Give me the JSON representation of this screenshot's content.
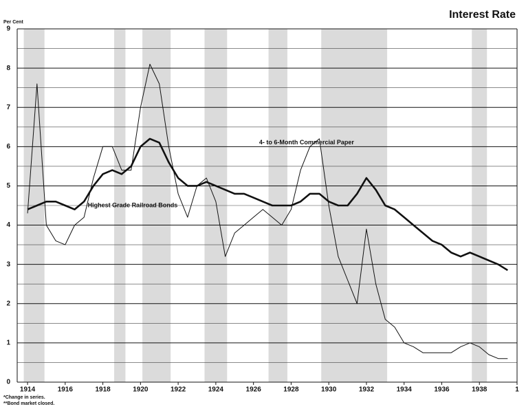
{
  "chart_data": {
    "type": "line",
    "title": "Interest Rate",
    "y_label": "Per Cent",
    "footnotes": [
      "*Change in series.",
      "**Bond market closed."
    ],
    "x": [
      1914,
      1914.5,
      1915,
      1915.5,
      1916,
      1916.5,
      1917,
      1917.5,
      1918,
      1918.5,
      1919,
      1919.5,
      1920,
      1920.5,
      1921,
      1921.5,
      1922,
      1922.5,
      1923,
      1923.5,
      1924,
      1924.5,
      1925,
      1925.5,
      1926,
      1926.5,
      1927,
      1927.5,
      1928,
      1928.5,
      1929,
      1929.5,
      1930,
      1930.5,
      1931,
      1931.5,
      1932,
      1932.5,
      1933,
      1933.5,
      1934,
      1934.5,
      1935,
      1935.5,
      1936,
      1936.5,
      1937,
      1937.5,
      1938,
      1938.5,
      1939,
      1939.5
    ],
    "series": [
      {
        "name": "4- to 6-Month Commercial Paper",
        "color": "#111111",
        "width": 1,
        "values": [
          4.3,
          7.6,
          4.0,
          3.6,
          3.5,
          4.0,
          4.2,
          5.2,
          6.0,
          6.0,
          5.4,
          5.4,
          7.0,
          8.1,
          7.6,
          6.0,
          4.8,
          4.2,
          5.0,
          5.2,
          4.6,
          3.2,
          3.8,
          4.0,
          4.2,
          4.4,
          4.2,
          4.0,
          4.4,
          5.4,
          6.0,
          6.2,
          4.5,
          3.2,
          2.6,
          2.0,
          3.9,
          2.5,
          1.6,
          1.4,
          1.0,
          0.9,
          0.75,
          0.75,
          0.75,
          0.75,
          0.9,
          1.0,
          0.9,
          0.7,
          0.6,
          0.6
        ]
      },
      {
        "name": "Highest Grade Railroad Bonds",
        "color": "#111111",
        "width": 2.6,
        "values": [
          4.4,
          4.5,
          4.6,
          4.6,
          4.5,
          4.4,
          4.6,
          5.0,
          5.3,
          5.4,
          5.3,
          5.5,
          6.0,
          6.2,
          6.1,
          5.6,
          5.2,
          5.0,
          5.0,
          5.1,
          5.0,
          4.9,
          4.8,
          4.8,
          4.7,
          4.6,
          4.5,
          4.5,
          4.5,
          4.6,
          4.8,
          4.8,
          4.6,
          4.5,
          4.5,
          4.8,
          5.2,
          4.9,
          4.5,
          4.4,
          4.2,
          4.0,
          3.8,
          3.6,
          3.5,
          3.3,
          3.2,
          3.3,
          3.2,
          3.1,
          3.0,
          2.85
        ]
      }
    ],
    "shaded_periods": [
      [
        1913.8,
        1914.9
      ],
      [
        1918.6,
        1919.2
      ],
      [
        1920.1,
        1921.6
      ],
      [
        1923.4,
        1924.6
      ],
      [
        1926.8,
        1927.8
      ],
      [
        1929.6,
        1933.1
      ],
      [
        1937.6,
        1938.4
      ]
    ],
    "shade_color": "#cfcfcf",
    "xlim": [
      1913.45,
      1940
    ],
    "xticks": [
      1914,
      1916,
      1918,
      1920,
      1922,
      1924,
      1926,
      1928,
      1930,
      1932,
      1934,
      1936,
      1938,
      {
        "value": 1940,
        "label": "1"
      }
    ],
    "ylim": [
      0,
      9
    ],
    "yticks": [
      0,
      1,
      2,
      3,
      4,
      5,
      6,
      7,
      8,
      9
    ],
    "minor_yticks": [
      0.5,
      1.5,
      2.5,
      3.5,
      4.5,
      5.5,
      6.5,
      7.5,
      8.5
    ],
    "grid": true
  }
}
